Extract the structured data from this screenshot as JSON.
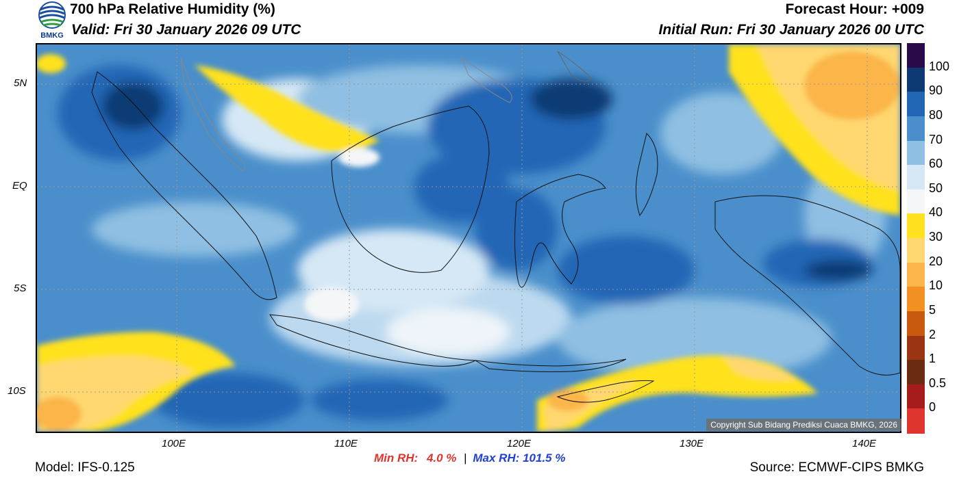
{
  "header": {
    "title": "700 hPa Relative Humidity (%)",
    "valid": "Valid: Fri 30 January 2026 09 UTC",
    "forecast_hour": "Forecast Hour: +009",
    "initial_run": "Initial Run: Fri 30 January 2026 00 UTC"
  },
  "logo": {
    "text": "BMKG"
  },
  "axes": {
    "y_ticks": [
      "5N",
      "EQ",
      "5S",
      "10S"
    ],
    "x_ticks": [
      "100E",
      "110E",
      "120E",
      "130E",
      "140E"
    ]
  },
  "colorbar": {
    "labels": [
      "100",
      "90",
      "80",
      "70",
      "60",
      "50",
      "40",
      "30",
      "20",
      "10",
      "5",
      "2",
      "1",
      "0.5",
      "0"
    ],
    "colors": [
      "#2b0a4a",
      "#0e3a73",
      "#2166b5",
      "#4a8fcb",
      "#8fbfe2",
      "#d6e8f5",
      "#f4f6f8",
      "#ffe11f",
      "#ffd770",
      "#fbb54a",
      "#f39022",
      "#c85a10",
      "#9a3412",
      "#6b2a12",
      "#a61c1c",
      "#e0342e"
    ]
  },
  "stats": {
    "min_label": "Min RH:",
    "min_value": "4.0 %",
    "separator": "|",
    "max_label": "Max RH:",
    "max_value": "101.5 %",
    "min_color": "#e0342e",
    "max_color": "#1f3fd6"
  },
  "copyright": "Copyright Sub Bidang Prediksi Cuaca BMKG, 2026",
  "footer": {
    "model": "Model: IFS-0.125",
    "source": "Source: ECMWF-CIPS BMKG"
  }
}
